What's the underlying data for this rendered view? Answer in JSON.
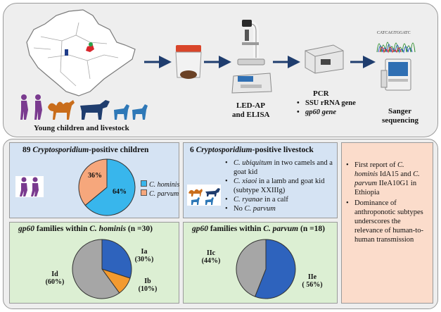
{
  "top": {
    "caption_children_livestock": "Young children and livestock",
    "microscopy_label_line1": "LED-AP",
    "microscopy_label_line2": "and ELISA",
    "pcr_title": "PCR",
    "pcr_items": [
      "SSU rRNA gene",
      "gp60 gene"
    ],
    "sequencing_label_line1": "Sanger",
    "sequencing_label_line2": "sequencing"
  },
  "children": {
    "title_count": "89",
    "title_genus": "Cryptosporidium",
    "title_rest": "-positive children",
    "legend": [
      {
        "name": "C. hominis",
        "color": "#38b6ec"
      },
      {
        "name": "C. parvum",
        "color": "#f6a77c"
      }
    ]
  },
  "livestock": {
    "title_count": "6",
    "title_genus": "Cryptosporidium",
    "title_rest": "-positive livestock",
    "findings": [
      {
        "species": "C. ubiquitum",
        "detail": " in two camels and a goat kid"
      },
      {
        "species": "C. xiaoi",
        "detail": " in a lamb and goat kid (subtype XXIIIg)"
      },
      {
        "species": "C. ryanae",
        "detail": " in a calf"
      },
      {
        "prefix": "No ",
        "species": "C. parvum",
        "detail": ""
      }
    ]
  },
  "hominis_families": {
    "title_gene": "gp60",
    "title_mid": " families within ",
    "title_species": "C. hominis",
    "title_n": "(n =30)"
  },
  "parvum_families": {
    "title_gene": "gp60",
    "title_mid": " families within ",
    "title_species": "C. parvum",
    "title_n": "(n =18)"
  },
  "conclusions": [
    {
      "text_before": "First report of ",
      "italic": "C. hominis",
      "text_mid": " IdA15 and ",
      "italic2": "C. parvum",
      "text_after": " IIeA10G1 in Ethiopia"
    },
    {
      "text_before": "Dominance of anthroponotic subtypes underscores the relevance of human-to-human transmission"
    }
  ],
  "chart_data": [
    {
      "type": "pie",
      "title": "89 Cryptosporidium-positive children",
      "categories": [
        "C. hominis",
        "C. parvum"
      ],
      "values": [
        64,
        36
      ],
      "labels": [
        "64%",
        "36%"
      ],
      "colors": [
        "#38b6ec",
        "#f6a77c"
      ],
      "legend": "right"
    },
    {
      "type": "pie",
      "title": "gp60 families within C. hominis (n =30)",
      "categories": [
        "Ia",
        "Ib",
        "Id"
      ],
      "values": [
        30,
        10,
        60
      ],
      "labels": [
        "Ia\n(30%)",
        "Ib\n(10%)",
        "Id\n(60%)"
      ],
      "colors": [
        "#2e63bd",
        "#f39a2f",
        "#a6a6a6"
      ]
    },
    {
      "type": "pie",
      "title": "gp60 families within C. parvum (n =18)",
      "categories": [
        "IIe",
        "IIc"
      ],
      "values": [
        56,
        44
      ],
      "labels": [
        "IIe\n( 56%)",
        "IIc\n(44%)"
      ],
      "colors": [
        "#2e63bd",
        "#a6a6a6"
      ]
    }
  ]
}
